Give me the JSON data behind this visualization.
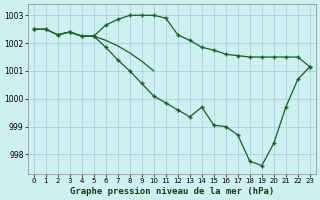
{
  "bg_color": "#cef0f0",
  "grid_color": "#aadada",
  "line_color": "#1a5e28",
  "title": "Graphe pression niveau de la mer (hPa)",
  "ylim": [
    997.3,
    1003.4
  ],
  "xlim": [
    -0.5,
    23.5
  ],
  "yticks": [
    998,
    999,
    1000,
    1001,
    1002,
    1003
  ],
  "xticks": [
    0,
    1,
    2,
    3,
    4,
    5,
    6,
    7,
    8,
    9,
    10,
    11,
    12,
    13,
    14,
    15,
    16,
    17,
    18,
    19,
    20,
    21,
    22,
    23
  ],
  "series1_x": [
    0,
    1,
    2,
    3,
    4,
    5,
    6,
    7,
    8,
    9,
    10,
    11,
    12,
    13,
    14,
    15,
    16,
    17,
    18,
    19,
    20,
    21,
    22,
    23
  ],
  "series1_y": [
    1002.5,
    1002.5,
    1002.3,
    1002.4,
    1002.25,
    1002.25,
    1002.65,
    1002.85,
    1003.0,
    1003.0,
    1003.0,
    1002.9,
    1002.3,
    1002.1,
    1001.85,
    1001.75,
    1001.6,
    1001.55,
    1001.5,
    1001.5,
    1001.5,
    1001.5,
    1001.5,
    1001.15
  ],
  "series2_x": [
    0,
    1,
    2,
    3,
    4,
    5,
    6,
    7,
    8,
    9,
    10,
    11,
    12,
    13,
    14,
    15,
    16,
    17,
    18,
    19,
    20,
    21,
    22,
    23
  ],
  "series2_y": [
    1002.5,
    1002.5,
    1002.3,
    1002.4,
    1002.25,
    1002.25,
    1001.85,
    1001.4,
    1001.0,
    1000.55,
    1000.1,
    999.85,
    999.6,
    999.35,
    999.7,
    999.05,
    999.0,
    998.7,
    997.75,
    997.6,
    998.4,
    999.7,
    1000.7,
    1001.15
  ],
  "series3_x": [
    2,
    3,
    4,
    5,
    6,
    7,
    8,
    9,
    10
  ],
  "series3_y": [
    1002.3,
    1002.4,
    1002.25,
    1002.25,
    1002.1,
    1001.9,
    1001.65,
    1001.35,
    1001.0
  ]
}
